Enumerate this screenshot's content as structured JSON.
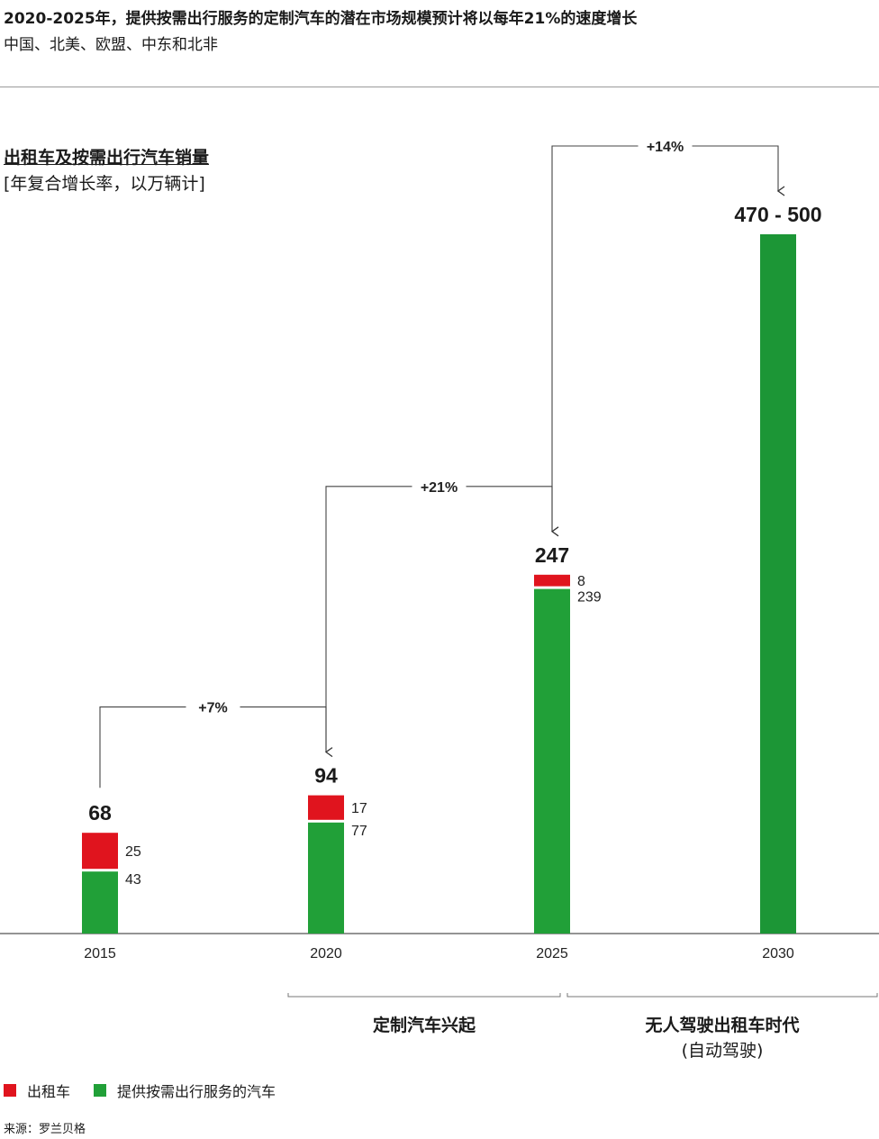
{
  "header": {
    "headline": "2020-2025年，提供按需出行服务的定制汽车的潜在市场规模预计将以每年21%的速度增长",
    "subline": "中国、北美、欧盟、中东和北非"
  },
  "chart_data": {
    "type": "bar",
    "stacked": true,
    "title": "出租车及按需出行汽车销量",
    "unit_label": "[年复合增长率，以万辆计]",
    "categories": [
      "2015",
      "2020",
      "2025",
      "2030"
    ],
    "series": [
      {
        "name": "提供按需出行服务的汽车",
        "color": "#21a038",
        "values": [
          43,
          77,
          239,
          485
        ]
      },
      {
        "name": "出租车",
        "color": "#e0141e",
        "values": [
          25,
          17,
          8,
          0
        ]
      }
    ],
    "segment_labels": [
      [
        "43",
        "25"
      ],
      [
        "77",
        "17"
      ],
      [
        "239",
        "8"
      ],
      [
        "",
        ""
      ]
    ],
    "totals": [
      "68",
      "94",
      "247",
      "470 - 500"
    ],
    "growth_arrows": [
      {
        "from": "2015",
        "to": "2020",
        "label": "+7%"
      },
      {
        "from": "2020",
        "to": "2025",
        "label": "+21%"
      },
      {
        "from": "2025",
        "to": "2030",
        "label": "+14%"
      }
    ],
    "eras": [
      {
        "label": "定制汽车兴起",
        "sublabel": "",
        "span": [
          "2020",
          "2025"
        ]
      },
      {
        "label": "无人驾驶出租车时代",
        "sublabel": "(自动驾驶)",
        "span": [
          "2025",
          "2030"
        ]
      }
    ],
    "colors": {
      "taxi": "#e0141e",
      "ondemand": "#21a038",
      "ondemand_2030": "#1c9636"
    }
  },
  "legend": {
    "items": [
      {
        "label": "出租车",
        "color": "#e0141e"
      },
      {
        "label": "提供按需出行服务的汽车",
        "color": "#21a038"
      }
    ]
  },
  "source": "来源：罗兰贝格"
}
